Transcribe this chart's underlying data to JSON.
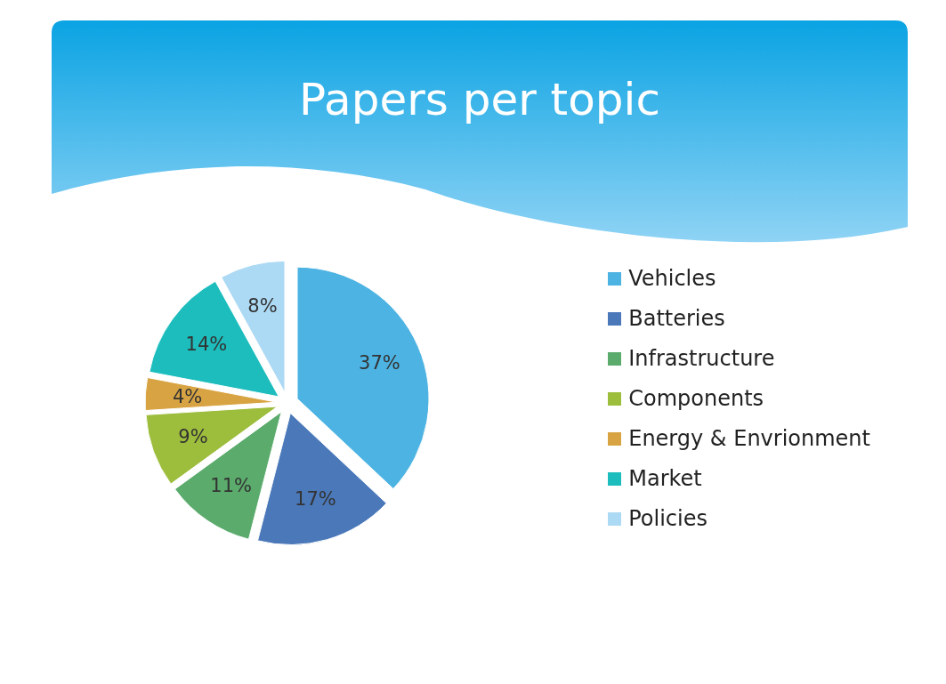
{
  "chart_data": {
    "type": "pie",
    "title": "Papers per topic",
    "categories": [
      "Vehicles",
      "Batteries",
      "Infrastructure",
      "Components",
      "Energy & Envrionment",
      "Market",
      "Policies"
    ],
    "values": [
      37,
      17,
      11,
      9,
      4,
      14,
      8
    ],
    "colors": [
      "#4db3e2",
      "#4a78b9",
      "#5bab6c",
      "#9dbd3c",
      "#d8a443",
      "#1dbdbd",
      "#acd9f4"
    ],
    "value_labels": [
      "37%",
      "17%",
      "11%",
      "9%",
      "4%",
      "14%",
      "8%"
    ],
    "legend": "right"
  }
}
